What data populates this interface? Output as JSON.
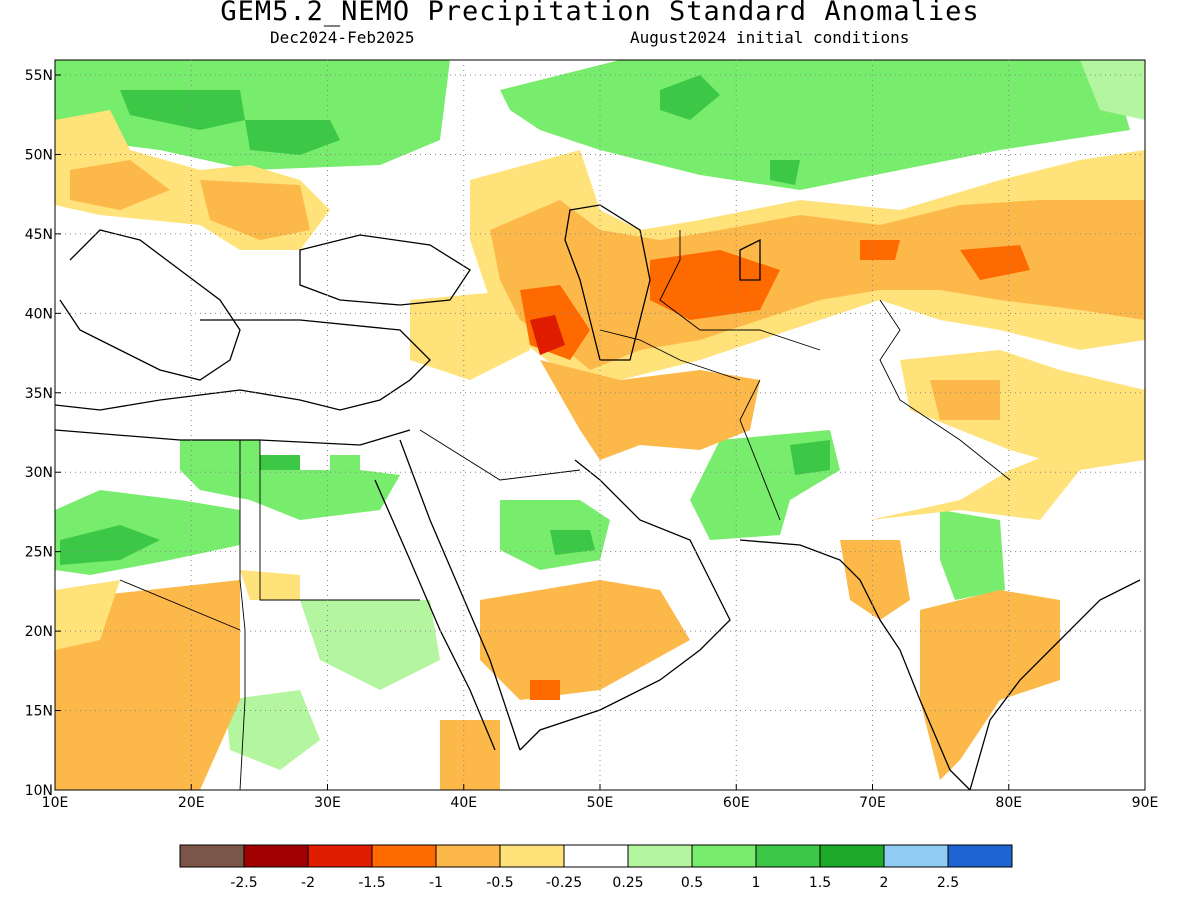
{
  "title": "GEM5.2_NEMO Precipitation Standard Anomalies",
  "subtitle_left": "Dec2024-Feb2025",
  "subtitle_right": "August2024 initial conditions",
  "x_ticks": [
    "10E",
    "20E",
    "30E",
    "40E",
    "50E",
    "60E",
    "70E",
    "80E",
    "90E"
  ],
  "y_ticks": [
    "55N",
    "50N",
    "45N",
    "40N",
    "35N",
    "30N",
    "25N",
    "20N",
    "15N",
    "10N"
  ],
  "legend": {
    "colors": [
      "#7a5548",
      "#a00000",
      "#e01c00",
      "#ff6a00",
      "#fdb84a",
      "#ffe27a",
      "#ffffff",
      "#b4f5a0",
      "#78ec6c",
      "#3cc846",
      "#1eaa28",
      "#8fcdf5",
      "#1e64d2"
    ],
    "labels": [
      "-2.5",
      "-2",
      "-1.5",
      "-1",
      "-0.5",
      "-0.25",
      "0.25",
      "0.5",
      "1",
      "1.5",
      "2",
      "2.5"
    ]
  }
}
